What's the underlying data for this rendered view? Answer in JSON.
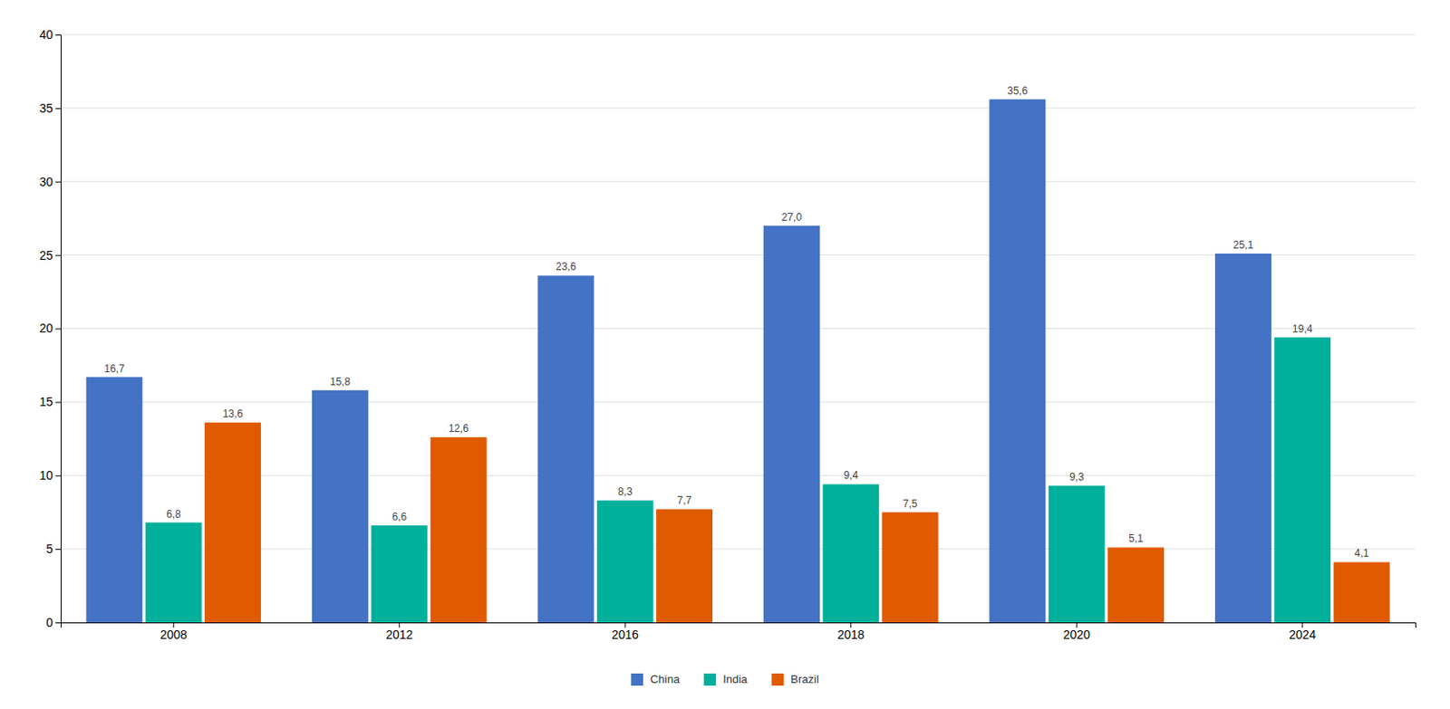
{
  "chart_data": {
    "type": "bar",
    "categories": [
      "2008",
      "2012",
      "2016",
      "2018",
      "2020",
      "2024"
    ],
    "series": [
      {
        "name": "China",
        "color": "#4472C4",
        "values": [
          16.7,
          15.8,
          23.6,
          27.0,
          35.6,
          25.1
        ],
        "value_labels": [
          "16,7",
          "15,8",
          "23,6",
          "27,0",
          "35,6",
          "25,1"
        ]
      },
      {
        "name": "India",
        "color": "#00B09B",
        "values": [
          6.8,
          6.6,
          8.3,
          9.4,
          9.3,
          19.4
        ],
        "value_labels": [
          "6,8",
          "6,6",
          "8,3",
          "9,4",
          "9,3",
          "19,4"
        ]
      },
      {
        "name": "Brazil",
        "color": "#E05A00",
        "values": [
          13.6,
          12.6,
          7.7,
          7.5,
          5.1,
          4.1
        ],
        "value_labels": [
          "13,6",
          "12,6",
          "7,7",
          "7,5",
          "5,1",
          "4,1"
        ]
      }
    ],
    "ylim": [
      0,
      40
    ],
    "yticks": [
      0,
      5,
      10,
      15,
      20,
      25,
      30,
      35,
      40
    ],
    "grid": true,
    "legend": "bottom",
    "data_labels": true
  }
}
